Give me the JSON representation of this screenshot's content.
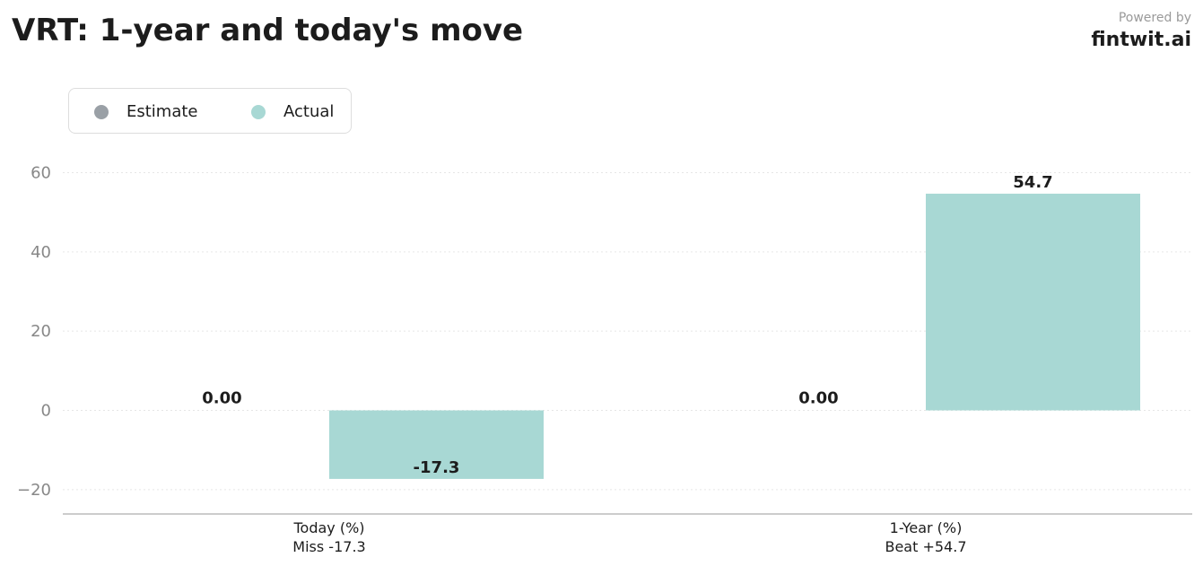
{
  "header": {
    "title": "VRT: 1-year and today's move",
    "powered_by": "Powered by",
    "brand": "fintwit.ai"
  },
  "colors": {
    "estimate": "#9aa0a6",
    "actual": "#a8d8d4",
    "grid": "#e6e6e6",
    "axis": "#bbbbbb"
  },
  "chart_data": {
    "type": "bar",
    "categories": [
      "Today (%)",
      "1-Year (%)"
    ],
    "category_sublabels": [
      "Miss -17.3",
      "Beat +54.7"
    ],
    "series": [
      {
        "name": "Estimate",
        "values": [
          0.0,
          0.0
        ],
        "labels": [
          "0.00",
          "0.00"
        ]
      },
      {
        "name": "Actual",
        "values": [
          -17.3,
          54.7
        ],
        "labels": [
          "-17.3",
          "54.7"
        ]
      }
    ],
    "yticks": [
      -20,
      0,
      20,
      40,
      60
    ],
    "ytick_labels": [
      "−20",
      "0",
      "20",
      "40",
      "60"
    ],
    "ylim": [
      -26,
      71
    ],
    "grid": true,
    "legend_position": "top-left",
    "title": "VRT: 1-year and today's move",
    "xlabel": "",
    "ylabel": ""
  }
}
